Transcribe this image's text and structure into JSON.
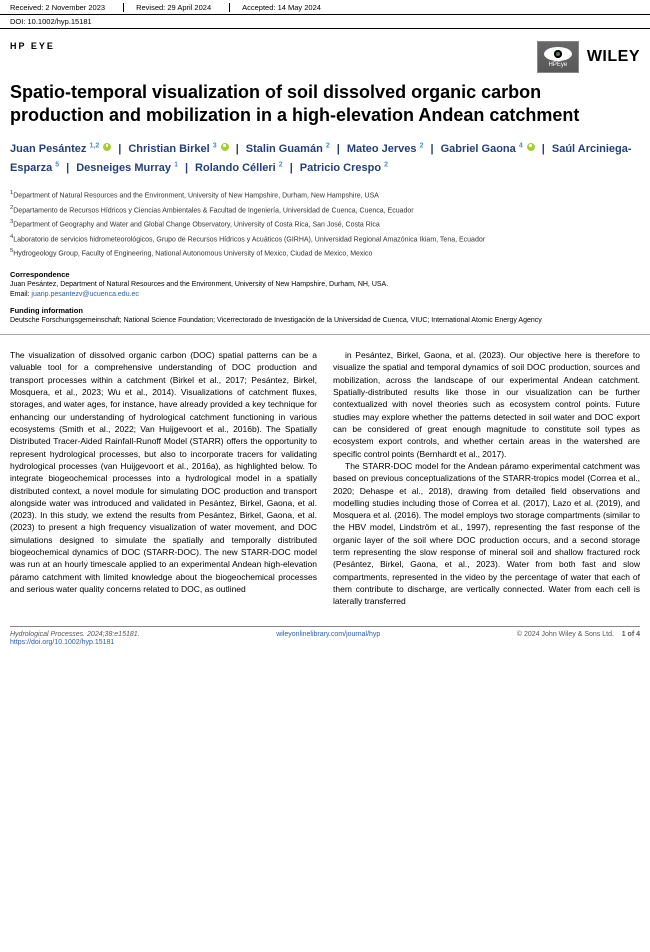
{
  "header": {
    "received": "Received: 2 November 2023",
    "revised": "Revised: 29 April 2024",
    "accepted": "Accepted: 14 May 2024",
    "doi": "DOI: 10.1002/hyp.15181",
    "section": "HP EYE",
    "hp_logo_label": "HPEye",
    "publisher": "WILEY"
  },
  "title": "Spatio-temporal visualization of soil dissolved organic carbon production and mobilization in a high-elevation Andean catchment",
  "authors": [
    {
      "name": "Juan Pesántez",
      "sup": "1,2",
      "orcid": true
    },
    {
      "name": "Christian Birkel",
      "sup": "3",
      "orcid": true
    },
    {
      "name": "Stalin Guamán",
      "sup": "2",
      "orcid": false
    },
    {
      "name": "Mateo Jerves",
      "sup": "2",
      "orcid": false
    },
    {
      "name": "Gabriel Gaona",
      "sup": "4",
      "orcid": true
    },
    {
      "name": "Saúl Arciniega-Esparza",
      "sup": "5",
      "orcid": false
    },
    {
      "name": "Desneiges Murray",
      "sup": "1",
      "orcid": false
    },
    {
      "name": "Rolando Célleri",
      "sup": "2",
      "orcid": false
    },
    {
      "name": "Patricio Crespo",
      "sup": "2",
      "orcid": false
    }
  ],
  "affiliations": [
    "Department of Natural Resources and the Environment, University of New Hampshire, Durham, New Hampshire, USA",
    "Departamento de Recursos Hídricos y Ciencias Ambientales & Facultad de Ingeniería, Universidad de Cuenca, Cuenca, Ecuador",
    "Department of Geography and Water and Global Change Observatory, University of Costa Rica, San José, Costa Rica",
    "Laboratorio de servicios hidrometeorológicos, Grupo de Recursos Hídricos y Acuáticos (GIRHA), Universidad Regional Amazónica Ikiam, Tena, Ecuador",
    "Hydrogeology Group, Faculty of Engineering, National Autonomous University of Mexico, Ciudad de Mexico, Mexico"
  ],
  "correspondence": {
    "heading": "Correspondence",
    "text": "Juan Pesántez, Department of Natural Resources and the Environment, University of New Hampshire, Durham, NH, USA.",
    "email_label": "Email: ",
    "email": "juanp.pesantezv@ucuenca.edu.ec"
  },
  "funding": {
    "heading": "Funding information",
    "text": "Deutsche Forschungsgemeinschaft; National Science Foundation; Vicerrectorado de Investigación de la Universidad de Cuenca, VIUC; International Atomic Energy Agency"
  },
  "body": {
    "p1": "The visualization of dissolved organic carbon (DOC) spatial patterns can be a valuable tool for a comprehensive understanding of DOC production and transport processes within a catchment (Birkel et al., 2017; Pesántez, Birkel, Mosquera, et al., 2023; Wu et al., 2014). Visualizations of catchment fluxes, storages, and water ages, for instance, have already provided a key technique for enhancing our understanding of hydrological catchment functioning in various ecosystems (Smith et al., 2022; Van Huijgevoort et al., 2016b). The Spatially Distributed Tracer-Aided Rainfall-Runoff Model (STARR) offers the opportunity to represent hydrological processes, but also to incorporate tracers for validating hydrological processes (van Huijgevoort et al., 2016a), as highlighted below. To integrate biogeochemical processes into a hydrological model in a spatially distributed context, a novel module for simulating DOC production and transport alongside water was introduced and validated in Pesántez, Birkel, Gaona, et al. (2023). In this study, we extend the results from Pesántez, Birkel, Gaona, et al. (2023) to present a high frequency visualization of water movement, and DOC simulations designed to simulate the spatially and temporally distributed biogeochemical dynamics of DOC (STARR-DOC). The new STARR-DOC model was run at an hourly timescale applied to an experimental Andean high-elevation páramo catchment with limited knowledge about the biogeochemical processes and serious water quality concerns related to DOC, as outlined",
    "p2": "in Pesántez, Birkel, Gaona, et al. (2023). Our objective here is therefore to visualize the spatial and temporal dynamics of soil DOC production, sources and mobilization, across the landscape of our experimental Andean catchment. Spatially-distributed results like those in our visualization can be further contextualized with novel theories such as ecosystem control points. Future studies may explore whether the patterns detected in soil water and DOC export can be considered of great enough magnitude to constitute soil types as ecosystem export controls, and whether certain areas in the watershed are specific control points (Bernhardt et al., 2017).",
    "p3": "The STARR-DOC model for the Andean páramo experimental catchment was based on previous conceptualizations of the STARR-tropics model (Correa et al., 2020; Dehaspe et al., 2018), drawing from detailed field observations and modelling studies including those of Correa et al. (2017), Lazo et al. (2019), and Mosquera et al. (2016). The model employs two storage compartments (similar to the HBV model, Lindström et al., 1997), representing the fast response of the organic layer of the soil where DOC production occurs, and a second storage term representing the slow response of mineral soil and shallow fractured rock (Pesántez, Birkel, Gaona, et al., 2023). Water from both fast and slow compartments, represented in the video by the percentage of water that each of them contribute to discharge, are vertically connected. Water from each cell is laterally transferred"
  },
  "footer": {
    "left": "Hydrological Processes. 2024;38:e15181.",
    "left_doi": "https://doi.org/10.1002/hyp.15181",
    "center": "wileyonlinelibrary.com/journal/hyp",
    "right_copy": "© 2024 John Wiley & Sons Ltd.",
    "right_page": "1 of 4"
  },
  "colors": {
    "author_color": "#243f7a",
    "link_color": "#2a5db0",
    "orcid_green": "#a6ce39",
    "sup_color": "#4a8bd6"
  }
}
